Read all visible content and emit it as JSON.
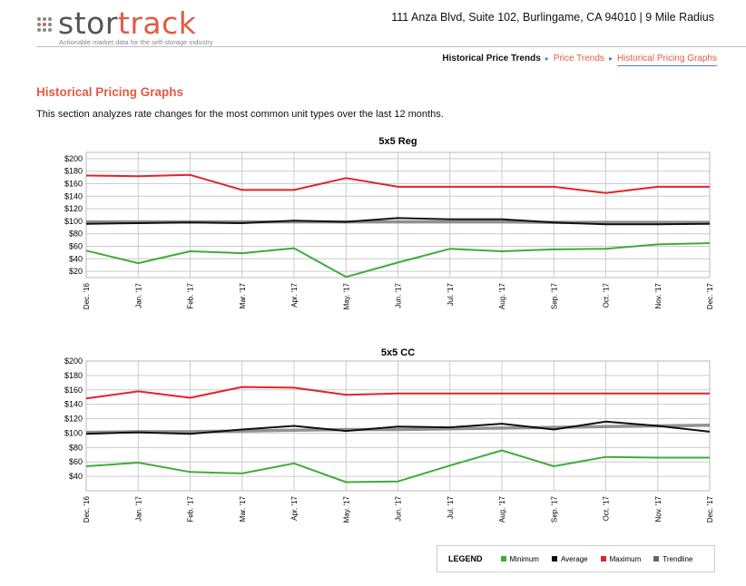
{
  "header": {
    "logo_text_primary": "stor",
    "logo_text_accent": "track",
    "logo_tagline": "Actionable market data for the self-storage industry",
    "address": "111 Anza Blvd, Suite 102, Burlingame, CA 94010 | 9 Mile Radius"
  },
  "breadcrumb": {
    "current": "Historical Price Trends",
    "link": "Price Trends",
    "active": "Historical Pricing Graphs"
  },
  "section": {
    "title": "Historical Pricing Graphs",
    "description": "This section analyzes rate changes for the most common unit types over the last 12 months."
  },
  "colors": {
    "minimum": "#3fac3a",
    "average": "#111111",
    "maximum": "#e3222a",
    "trendline": "#777777",
    "grid": "#cccccc"
  },
  "legend": {
    "title": "LEGEND",
    "items": [
      {
        "label": "Minimum",
        "color": "#3fac3a"
      },
      {
        "label": "Average",
        "color": "#111111"
      },
      {
        "label": "Maximum",
        "color": "#e3222a"
      },
      {
        "label": "Trendline",
        "color": "#666666"
      }
    ]
  },
  "chart_data": [
    {
      "type": "line",
      "title": "5x5 Reg",
      "categories": [
        "Dec. '16",
        "Jan. '17",
        "Feb. '17",
        "Mar. '17",
        "Apr. '17",
        "May. '17",
        "Jun. '17",
        "Jul. '17",
        "Aug. '17",
        "Sep. '17",
        "Oct. '17",
        "Nov. '17",
        "Dec. '17"
      ],
      "ylim": [
        10,
        210
      ],
      "yticks": [
        "$20",
        "$40",
        "$60",
        "$80",
        "$100",
        "$120",
        "$140",
        "$160",
        "$180",
        "$200"
      ],
      "ytick_values": [
        20,
        40,
        60,
        80,
        100,
        120,
        140,
        160,
        180,
        200
      ],
      "grid": true,
      "series": [
        {
          "name": "Maximum",
          "values": [
            173,
            172,
            174,
            150,
            150,
            169,
            155,
            155,
            155,
            155,
            145,
            155,
            155
          ]
        },
        {
          "name": "Average",
          "values": [
            96,
            97,
            98,
            97,
            101,
            99,
            105,
            103,
            103,
            98,
            95,
            95,
            96
          ]
        },
        {
          "name": "Minimum",
          "values": [
            53,
            33,
            52,
            49,
            57,
            11,
            34,
            56,
            52,
            55,
            56,
            63,
            65
          ]
        },
        {
          "name": "Trendline",
          "values": [
            99,
            99,
            99,
            99,
            99,
            99,
            99,
            99,
            99,
            98,
            98,
            98,
            98
          ]
        }
      ]
    },
    {
      "type": "line",
      "title": "5x5 CC",
      "categories": [
        "Dec. '16",
        "Jan. '17",
        "Feb. '17",
        "Mar. '17",
        "Apr. '17",
        "May. '17",
        "Jun. '17",
        "Jul. '17",
        "Aug. '17",
        "Sep. '17",
        "Oct. '17",
        "Nov. '17",
        "Dec. '17"
      ],
      "ylim": [
        20,
        200
      ],
      "yticks": [
        "$40",
        "$60",
        "$80",
        "$100",
        "$120",
        "$140",
        "$160",
        "$180",
        "$200"
      ],
      "ytick_values": [
        40,
        60,
        80,
        100,
        120,
        140,
        160,
        180,
        200
      ],
      "grid": true,
      "series": [
        {
          "name": "Maximum",
          "values": [
            148,
            158,
            149,
            164,
            163,
            153,
            155,
            155,
            155,
            155,
            155,
            155,
            155
          ]
        },
        {
          "name": "Average",
          "values": [
            99,
            101,
            99,
            105,
            110,
            103,
            109,
            108,
            113,
            105,
            116,
            110,
            102
          ]
        },
        {
          "name": "Minimum",
          "values": [
            54,
            59,
            46,
            44,
            58,
            32,
            33,
            55,
            76,
            54,
            67,
            66,
            66
          ]
        },
        {
          "name": "Trendline",
          "values": [
            101,
            102,
            102,
            103,
            104,
            105,
            105,
            106,
            107,
            108,
            109,
            110,
            111
          ]
        }
      ]
    }
  ]
}
